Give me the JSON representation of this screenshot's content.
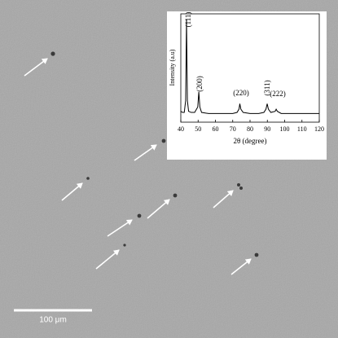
{
  "chart_data": {
    "type": "line",
    "xlabel": "2θ (degree)",
    "ylabel": "Intensity (a.u)",
    "x": [
      40,
      41,
      42,
      42.8,
      43.3,
      43.8,
      44.5,
      46,
      48,
      49.8,
      50.4,
      51,
      52,
      56,
      60,
      65,
      70,
      72.5,
      73.6,
      74.1,
      74.7,
      76,
      80,
      85,
      88,
      89.2,
      89.9,
      90.6,
      92,
      94.5,
      95.1,
      95.8,
      98,
      105,
      110,
      115,
      120
    ],
    "series": [
      {
        "color": "#000000",
        "values": [
          10,
          9,
          9,
          20,
          95,
          20,
          10,
          9,
          9,
          14,
          28,
          14,
          9,
          8,
          8,
          8,
          8,
          9,
          12,
          17,
          12,
          9,
          8,
          8,
          9,
          12,
          17,
          12,
          9,
          10,
          12,
          10,
          8,
          8,
          8,
          8,
          8
        ]
      }
    ],
    "xlim": [
      40,
      120
    ],
    "xticks": [
      40,
      50,
      60,
      70,
      80,
      90,
      100,
      110,
      120
    ],
    "ylim": [
      0,
      100
    ],
    "annotations": [
      "(111)",
      "(200)",
      "(220)",
      "(311)",
      "(222)"
    ]
  },
  "scale_bar": "100 μm"
}
